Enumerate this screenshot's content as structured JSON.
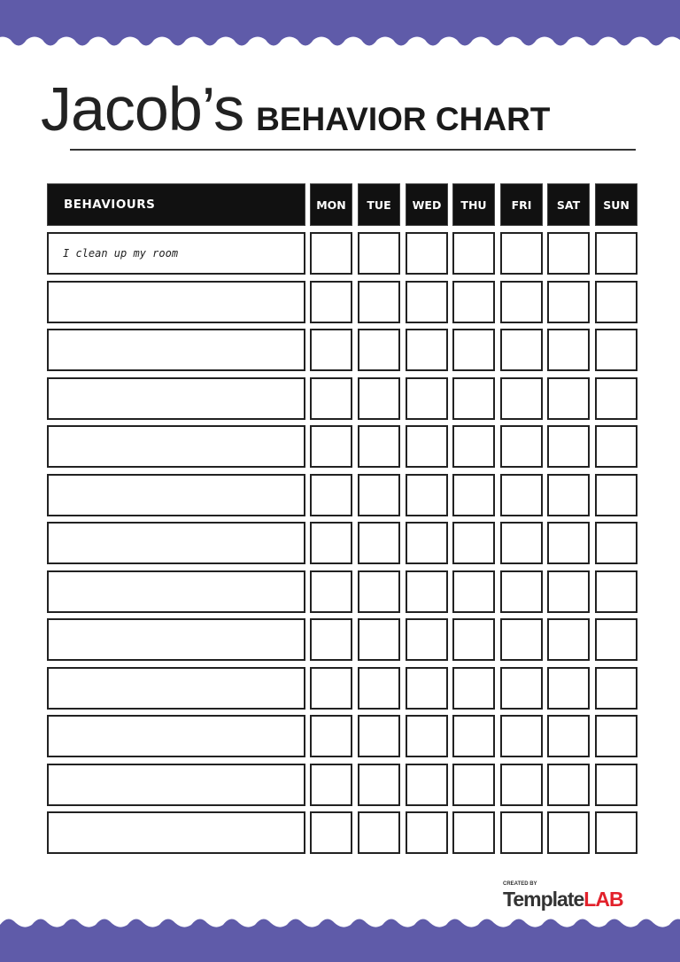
{
  "colors": {
    "wave": "#5f5ba9",
    "header_bg": "#111111",
    "logo_accent": "#e2212b"
  },
  "title": {
    "name": "Jacob’s",
    "subtitle": "BEHAVIOR CHART"
  },
  "table": {
    "behaviours_header": "BEHAVIOURS",
    "days": [
      "MON",
      "TUE",
      "WED",
      "THU",
      "FRI",
      "SAT",
      "SUN"
    ],
    "rows": [
      "I clean up my room",
      "",
      "",
      "",
      "",
      "",
      "",
      "",
      "",
      "",
      "",
      "",
      ""
    ]
  },
  "logo": {
    "created_by": "CREATED BY",
    "brand_a": "Template",
    "brand_b": "LAB"
  }
}
